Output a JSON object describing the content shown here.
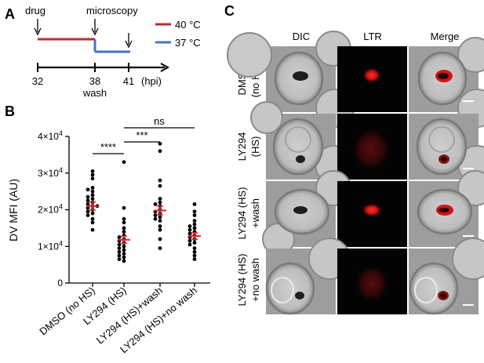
{
  "panel_a": {
    "letter": "A",
    "drug_label": "drug",
    "microscopy_label": "microscopy",
    "legend": [
      {
        "label": "40 °C",
        "color": "#c0282d"
      },
      {
        "label": "37 °C",
        "color": "#4a72c4"
      }
    ],
    "ticks": [
      "32",
      "38",
      "41"
    ],
    "unit_label": "(hpi)",
    "wash_label": "wash"
  },
  "panel_b": {
    "letter": "B",
    "ylabel": "DV MFI (AU)",
    "y_tick_labels": [
      "0",
      "1×10⁴",
      "2×10⁴",
      "3×10⁴",
      "4×10⁴"
    ],
    "significance": [
      {
        "label": "****",
        "from": 0,
        "to": 1
      },
      {
        "label": "***",
        "from": 1,
        "to": 2
      },
      {
        "label": "ns",
        "from": 1,
        "to": 3
      }
    ],
    "mean_color": "#e0262d",
    "point_color": "#000000"
  },
  "panel_c": {
    "letter": "C",
    "columns": [
      "DIC",
      "LTR",
      "Merge"
    ],
    "rows": [
      {
        "line1": "DMSO",
        "line2": "(no HS)"
      },
      {
        "line1": "LY294",
        "line2": "(HS)"
      },
      {
        "line1": "LY294 (HS)",
        "line2": "+wash"
      },
      {
        "line1": "LY294 (HS)",
        "line2": "+no wash"
      }
    ]
  },
  "chart_data": {
    "type": "scatter",
    "title": "",
    "xlabel": "",
    "ylabel": "DV MFI (AU)",
    "ylim": [
      0,
      40000
    ],
    "categories": [
      "DMSO (no HS)",
      "LY294 (HS)",
      "LY294 (HS)+wash",
      "LY294 (HS)+no wash"
    ],
    "series": [
      {
        "category": "DMSO (no HS)",
        "mean": 21000,
        "sem": 1100,
        "values": [
          30500,
          29500,
          28500,
          26000,
          25500,
          25000,
          24000,
          23500,
          23000,
          22500,
          22000,
          21500,
          21000,
          21000,
          20500,
          20000,
          19500,
          19000,
          18500,
          17500,
          16500,
          14500
        ]
      },
      {
        "category": "LY294 (HS)",
        "mean": 11800,
        "sem": 1000,
        "values": [
          33000,
          20500,
          17500,
          16500,
          15000,
          14000,
          13000,
          12500,
          12000,
          11500,
          11000,
          10500,
          10000,
          9500,
          9000,
          8500,
          8000,
          7500,
          7000,
          6500,
          6000
        ]
      },
      {
        "category": "LY294 (HS)+wash",
        "mean": 19800,
        "sem": 1200,
        "values": [
          38000,
          36000,
          28000,
          26500,
          23000,
          22000,
          21500,
          21000,
          20000,
          19500,
          19000,
          18500,
          18000,
          17500,
          17000,
          15500,
          14500,
          12000,
          9500
        ]
      },
      {
        "category": "LY294 (HS)+no wash",
        "mean": 12800,
        "sem": 900,
        "values": [
          21500,
          19500,
          18500,
          17000,
          16000,
          15500,
          15000,
          14500,
          14000,
          13500,
          13000,
          12500,
          12000,
          11500,
          11000,
          10500,
          9500,
          8500,
          7500,
          6500
        ]
      }
    ]
  }
}
